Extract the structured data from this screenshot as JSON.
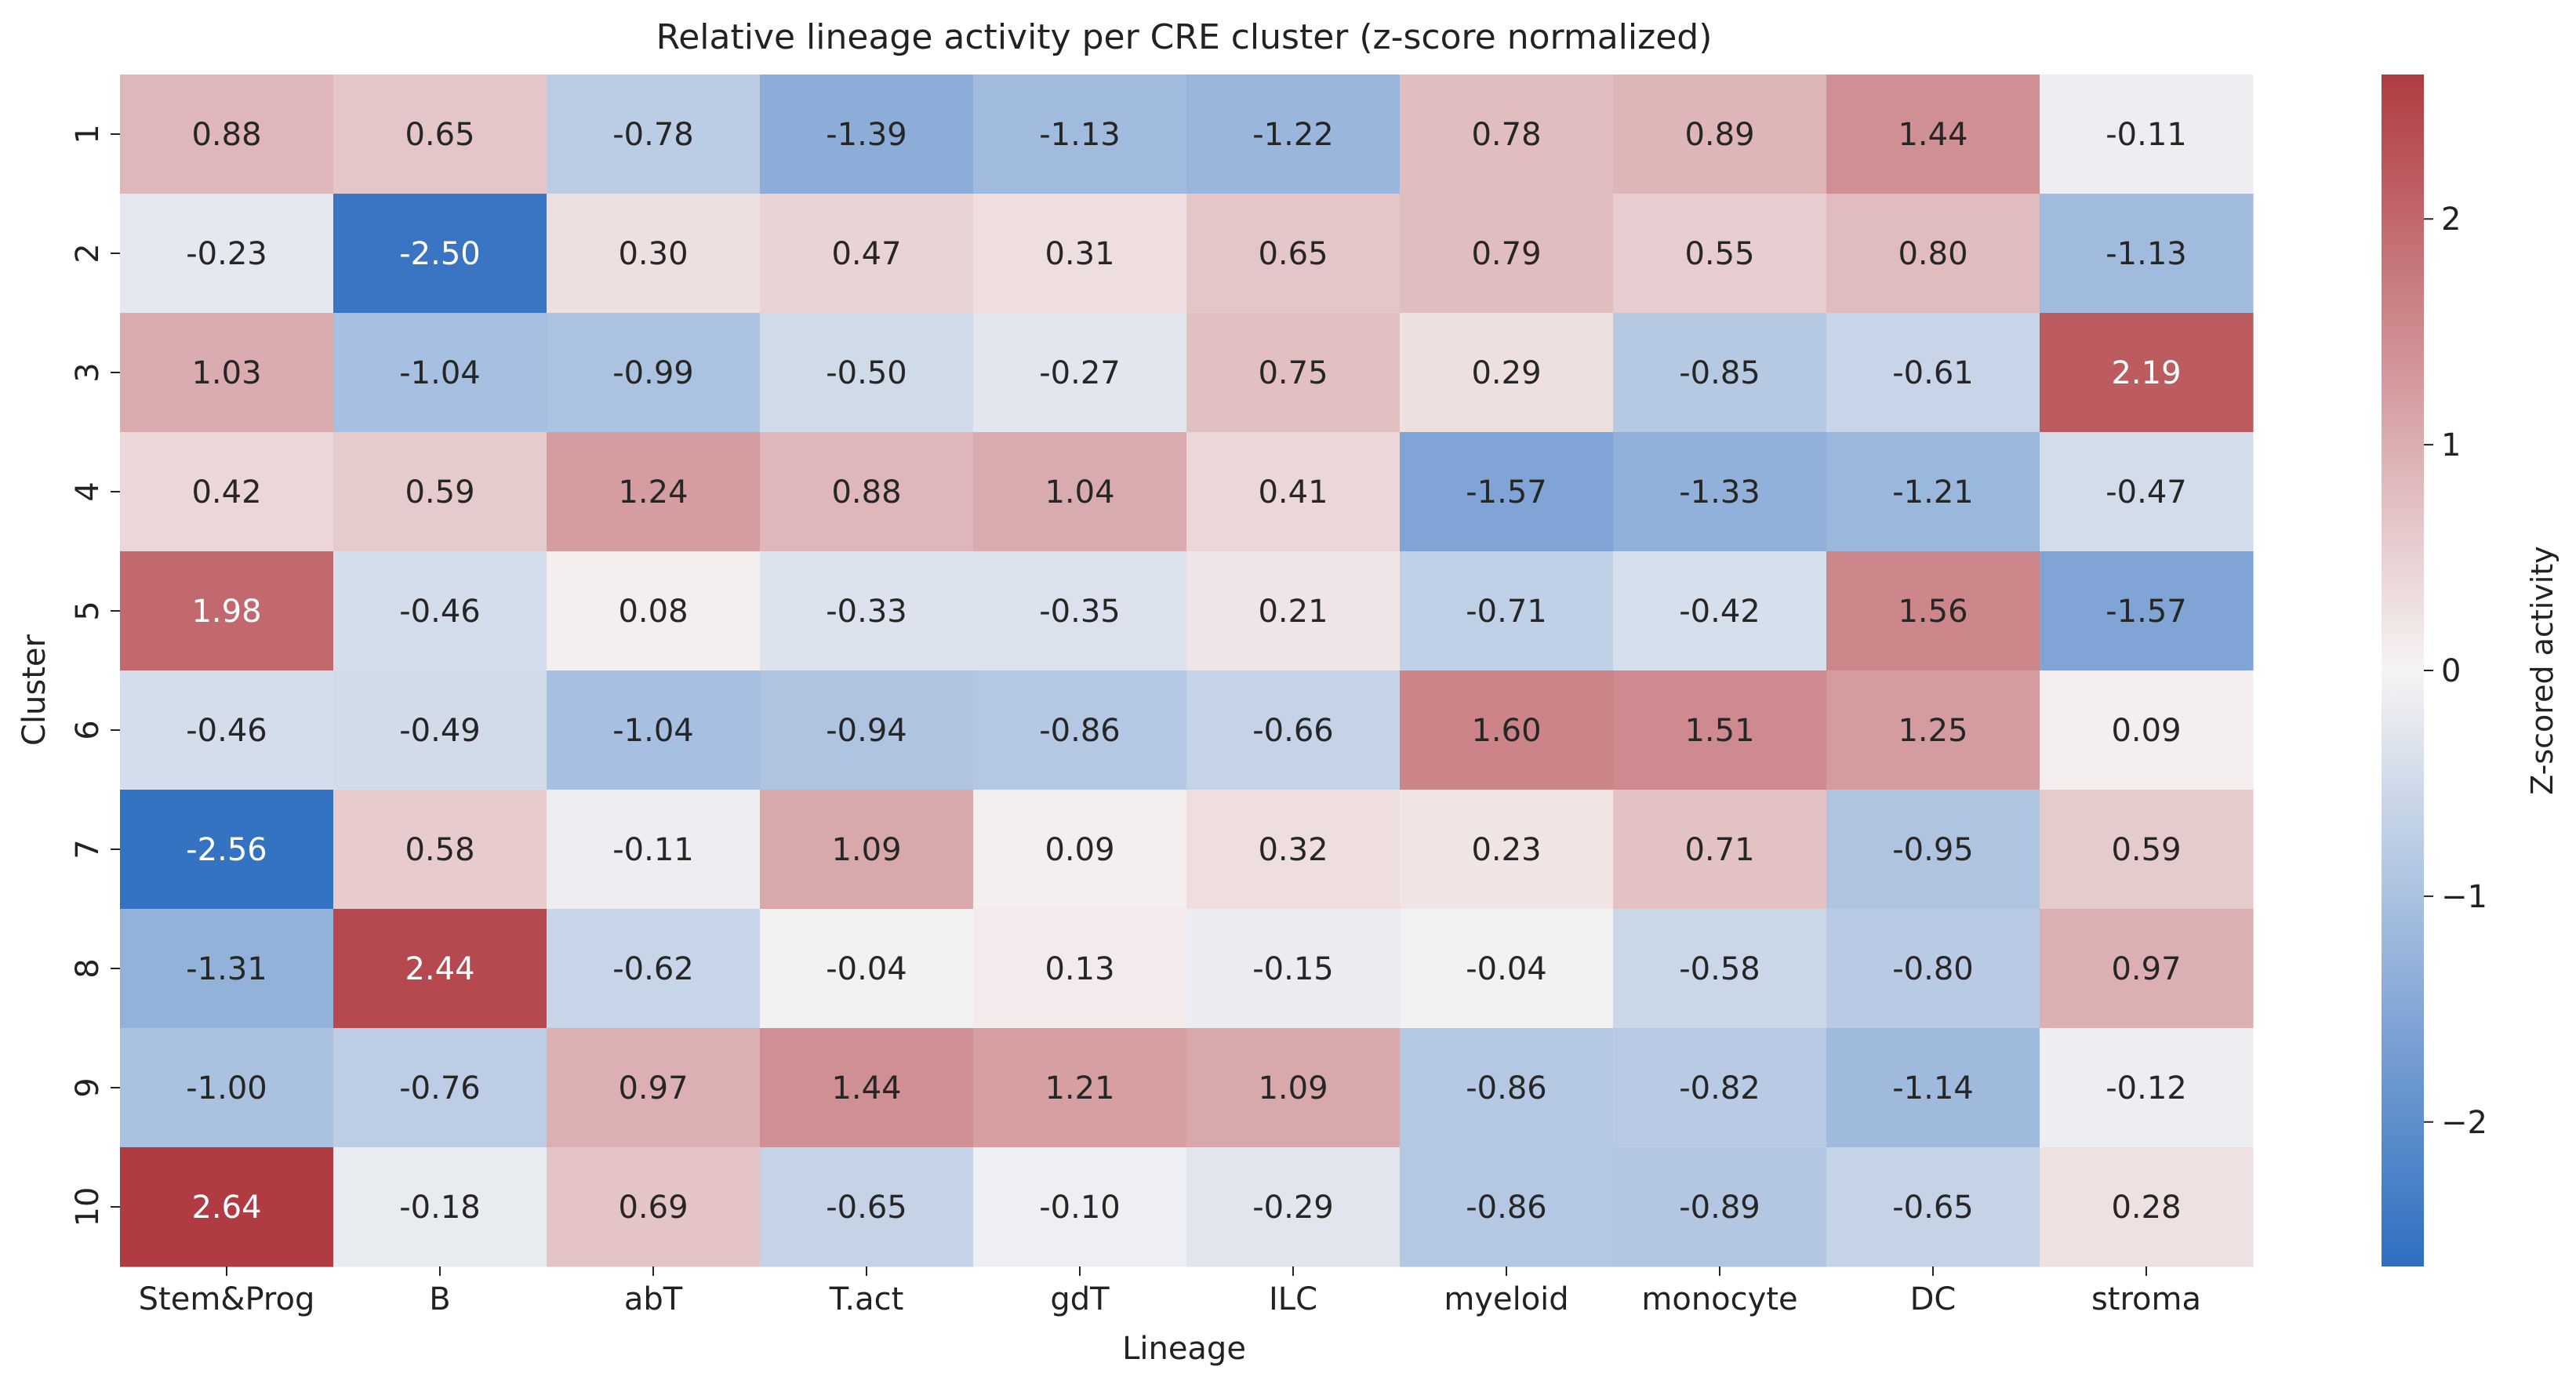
{
  "chart_data": {
    "type": "heatmap",
    "title": "Relative lineage activity per CRE cluster (z-score normalized)",
    "xlabel": "Lineage",
    "ylabel": "Cluster",
    "x_categories": [
      "Stem&Prog",
      "B",
      "abT",
      "T.act",
      "gdT",
      "ILC",
      "myeloid",
      "monocyte",
      "DC",
      "stroma"
    ],
    "y_categories": [
      "1",
      "2",
      "3",
      "4",
      "5",
      "6",
      "7",
      "8",
      "9",
      "10"
    ],
    "values": [
      [
        0.88,
        0.65,
        -0.78,
        -1.39,
        -1.13,
        -1.22,
        0.78,
        0.89,
        1.44,
        -0.11
      ],
      [
        -0.23,
        -2.5,
        0.3,
        0.47,
        0.31,
        0.65,
        0.79,
        0.55,
        0.8,
        -1.13
      ],
      [
        1.03,
        -1.04,
        -0.99,
        -0.5,
        -0.27,
        0.75,
        0.29,
        -0.85,
        -0.61,
        2.19
      ],
      [
        0.42,
        0.59,
        1.24,
        0.88,
        1.04,
        0.41,
        -1.57,
        -1.33,
        -1.21,
        -0.47
      ],
      [
        1.98,
        -0.46,
        0.08,
        -0.33,
        -0.35,
        0.21,
        -0.71,
        -0.42,
        1.56,
        -1.57
      ],
      [
        -0.46,
        -0.49,
        -1.04,
        -0.94,
        -0.86,
        -0.66,
        1.6,
        1.51,
        1.25,
        0.09
      ],
      [
        -2.56,
        0.58,
        -0.11,
        1.09,
        0.09,
        0.32,
        0.23,
        0.71,
        -0.95,
        0.59
      ],
      [
        -1.31,
        2.44,
        -0.62,
        -0.04,
        0.13,
        -0.15,
        -0.04,
        -0.58,
        -0.8,
        0.97
      ],
      [
        -1.0,
        -0.76,
        0.97,
        1.44,
        1.21,
        1.09,
        -0.86,
        -0.82,
        -1.14,
        -0.12
      ],
      [
        2.64,
        -0.18,
        0.69,
        -0.65,
        -0.1,
        -0.29,
        -0.86,
        -0.89,
        -0.65,
        0.28
      ]
    ],
    "value_format": "0.00",
    "colorbar": {
      "label": "Z-scored activity",
      "range": [
        -2.64,
        2.64
      ],
      "ticks": [
        2,
        1,
        0,
        -1,
        -2
      ],
      "tick_labels": [
        "2",
        "1",
        "0",
        "−1",
        "−2"
      ],
      "colormap": "blue-white-red diverging",
      "colors": {
        "low": "#2e6ec0",
        "mid": "#f6f4f4",
        "high": "#b03b42"
      }
    },
    "grid": false
  }
}
